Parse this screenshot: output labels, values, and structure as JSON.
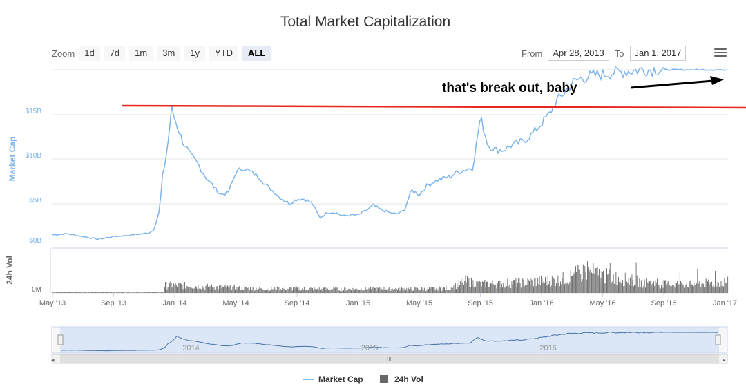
{
  "title": "Total Market Capitalization",
  "zoom": {
    "label": "Zoom",
    "buttons": [
      "1d",
      "7d",
      "1m",
      "3m",
      "1y",
      "YTD",
      "ALL"
    ],
    "active": "ALL"
  },
  "range": {
    "from_label": "From",
    "from_value": "Apr 28, 2013",
    "to_label": "To",
    "to_value": "Jan 1, 2017"
  },
  "annotation": {
    "text": "that's break out, baby",
    "line_color": "#e8271f"
  },
  "colors": {
    "market_cap": "#7cb5ec",
    "volume": "#666666"
  },
  "chart_data": {
    "type": "line",
    "title": "Total Market Capitalization",
    "x_ticks": [
      "May '13",
      "Sep '13",
      "Jan '14",
      "May '14",
      "Sep '14",
      "Jan '15",
      "May '15",
      "Sep '15",
      "Jan '16",
      "May '16",
      "Sep '16",
      "Jan '17"
    ],
    "market_cap": {
      "name": "Market Cap",
      "ylabel": "Market Cap",
      "ylim": [
        0,
        20
      ],
      "y_ticks": [
        "$0B",
        "$5B",
        "$10B",
        "$15B"
      ],
      "units": "billion USD",
      "x_months": [
        0,
        1,
        2,
        3,
        4,
        4.8,
        5.3,
        5.9,
        6.3,
        6.6,
        6.8,
        7.0,
        7.2,
        7.5,
        7.8,
        8.1,
        8.5,
        9.0,
        9.5,
        10.0,
        10.5,
        11.0,
        11.5,
        12.0,
        12.5,
        13.0,
        13.5,
        14.0,
        14.5,
        15.0,
        15.5,
        16.0,
        16.5,
        17.0,
        17.5,
        18.0,
        18.5,
        19.0,
        19.5,
        20.0,
        20.5,
        21.0,
        21.5,
        22.0,
        22.5,
        23.0,
        23.5,
        24.0,
        24.5,
        25.0,
        25.5,
        26.0,
        26.5,
        27.0,
        27.5,
        28.0,
        28.5,
        29.0,
        29.5,
        30.0,
        30.5,
        31.0,
        31.5,
        32.0,
        32.5,
        33.0,
        33.5,
        34.0,
        34.5,
        35.0,
        35.5,
        36.0,
        36.5,
        37.0,
        37.5,
        38.0,
        38.5,
        39.0,
        39.5,
        40.0,
        40.5,
        41.0,
        41.5,
        42.0,
        42.5,
        43.0,
        43.5,
        44.0,
        44.2
      ],
      "values": [
        1.5,
        1.6,
        1.3,
        1.0,
        1.3,
        1.4,
        1.5,
        1.6,
        1.7,
        2.0,
        3.0,
        4.2,
        8.0,
        11.0,
        15.6,
        14.0,
        12.0,
        10.5,
        9.5,
        8.0,
        7.0,
        6.0,
        6.2,
        8.5,
        9.0,
        8.5,
        8.0,
        7.0,
        6.3,
        5.5,
        5.0,
        5.5,
        5.5,
        5.0,
        3.4,
        4.0,
        4.0,
        3.6,
        3.7,
        3.7,
        4.2,
        4.8,
        4.3,
        4.0,
        3.8,
        4.2,
        6.5,
        6.0,
        7.0,
        7.5,
        7.8,
        8.0,
        8.5,
        8.8,
        9.0,
        14.7,
        11.5,
        11.0,
        11.0,
        11.5,
        11.8,
        12.2,
        13.0,
        14.0,
        15.0,
        16.5,
        17.5,
        18.5,
        19.0,
        19.2,
        19.4,
        19.5,
        19.6,
        19.7,
        19.8,
        19.9,
        20.0,
        20.0,
        20.0,
        20.0,
        20.0,
        20.0,
        20.0,
        20.0,
        20.0,
        20.0,
        20.0,
        20.0,
        20.0
      ]
    },
    "volume": {
      "name": "24h Vol",
      "ylabel": "24h Vol",
      "y_ticks": [
        "0M"
      ],
      "units": "relative",
      "x_months": [
        0,
        6,
        8,
        10,
        12,
        14,
        16,
        18,
        20,
        22,
        24,
        26,
        27,
        28,
        29,
        30,
        31,
        32,
        33,
        34,
        35,
        36,
        37,
        38,
        39,
        40,
        41,
        42,
        43,
        44
      ],
      "values": [
        0.3,
        1.5,
        1.6,
        1.3,
        1.0,
        0.9,
        0.9,
        0.8,
        0.8,
        0.9,
        0.8,
        1.0,
        2.4,
        1.8,
        1.9,
        2.0,
        2.2,
        2.4,
        2.6,
        3.5,
        4.5,
        3.5,
        3.0,
        2.5,
        2.0,
        1.8,
        1.9,
        1.8,
        2.0,
        2.2
      ]
    },
    "legend": [
      "Market Cap",
      "24h Vol"
    ],
    "navigator": {
      "year_labels": [
        "2014",
        "2015",
        "2016"
      ]
    }
  }
}
